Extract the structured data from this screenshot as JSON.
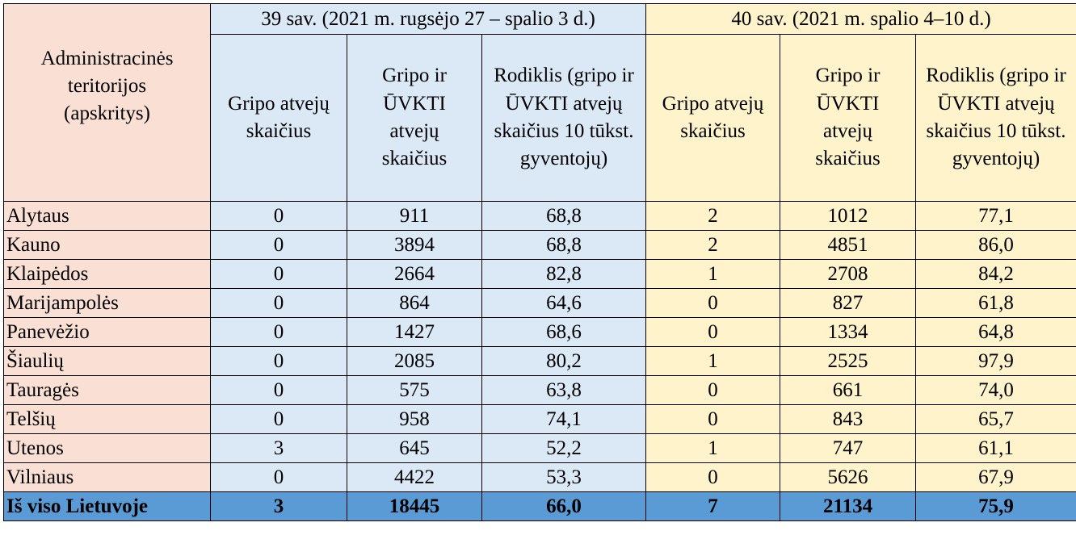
{
  "header": {
    "region_col": "Administracinės teritorijos (apskritys)",
    "week39": "39 sav. (2021 m. rugsėjo 27 – spalio 3 d.)",
    "week40": "40 sav. (2021 m. spalio 4–10 d.)",
    "col_flu": "Gripo atvejų skaičius",
    "col_flu_ari": "Gripo ir ŪVKTI atvejų skaičius",
    "col_rate": "Rodiklis (gripo ir ŪVKTI atvejų skaičius 10 tūkst. gyventojų)"
  },
  "rows": [
    {
      "region": "Alytaus",
      "w39_flu": "0",
      "w39_total": "911",
      "w39_rate": "68,8",
      "w40_flu": "2",
      "w40_total": "1012",
      "w40_rate": "77,1"
    },
    {
      "region": "Kauno",
      "w39_flu": "0",
      "w39_total": "3894",
      "w39_rate": "68,8",
      "w40_flu": "2",
      "w40_total": "4851",
      "w40_rate": "86,0"
    },
    {
      "region": "Klaipėdos",
      "w39_flu": "0",
      "w39_total": "2664",
      "w39_rate": "82,8",
      "w40_flu": "1",
      "w40_total": "2708",
      "w40_rate": "84,2"
    },
    {
      "region": "Marijampolės",
      "w39_flu": "0",
      "w39_total": "864",
      "w39_rate": "64,6",
      "w40_flu": "0",
      "w40_total": "827",
      "w40_rate": "61,8"
    },
    {
      "region": "Panevėžio",
      "w39_flu": "0",
      "w39_total": "1427",
      "w39_rate": "68,6",
      "w40_flu": "0",
      "w40_total": "1334",
      "w40_rate": "64,8"
    },
    {
      "region": "Šiaulių",
      "w39_flu": "0",
      "w39_total": "2085",
      "w39_rate": "80,2",
      "w40_flu": "1",
      "w40_total": "2525",
      "w40_rate": "97,9"
    },
    {
      "region": "Tauragės",
      "w39_flu": "0",
      "w39_total": "575",
      "w39_rate": "63,8",
      "w40_flu": "0",
      "w40_total": "661",
      "w40_rate": "74,0"
    },
    {
      "region": "Telšių",
      "w39_flu": "0",
      "w39_total": "958",
      "w39_rate": "74,1",
      "w40_flu": "0",
      "w40_total": "843",
      "w40_rate": "65,7"
    },
    {
      "region": "Utenos",
      "w39_flu": "3",
      "w39_total": "645",
      "w39_rate": "52,2",
      "w40_flu": "1",
      "w40_total": "747",
      "w40_rate": "61,1"
    },
    {
      "region": "Vilniaus",
      "w39_flu": "0",
      "w39_total": "4422",
      "w39_rate": "53,3",
      "w40_flu": "0",
      "w40_total": "5626",
      "w40_rate": "67,9"
    }
  ],
  "total": {
    "region": "Iš viso Lietuvoje",
    "w39_flu": "3",
    "w39_total": "18445",
    "w39_rate": "66,0",
    "w40_flu": "7",
    "w40_total": "21134",
    "w40_rate": "75,9"
  },
  "colors": {
    "region_bg": "#fae0d4",
    "week39_bg": "#dbe8f6",
    "week40_bg": "#fff3cc",
    "total_bg": "#5b9bd5"
  }
}
